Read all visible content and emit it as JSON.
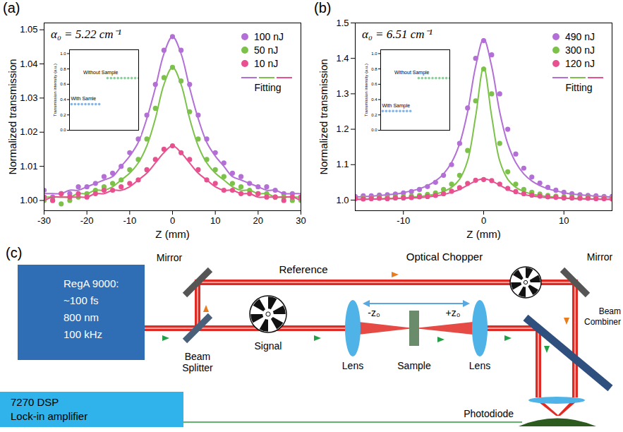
{
  "chart_data": [
    {
      "type": "scatter",
      "label": "(a)",
      "annotation": "α₀ = 5.22 cm⁻¹",
      "xlabel": "Z (mm)",
      "ylabel": "Normalized transmission",
      "xlim": [
        -30,
        30
      ],
      "xticks": [
        -30,
        -20,
        -10,
        0,
        10,
        20,
        30
      ],
      "ylim": [
        0.997,
        1.052
      ],
      "yticks": [
        {
          "value": 1,
          "label": "1.00"
        },
        1.01,
        1.02,
        1.03,
        1.04,
        1.05
      ],
      "legend": "top-right",
      "fit_label": "Fitting",
      "x": [
        -30,
        -28,
        -26,
        -24,
        -22,
        -20,
        -18,
        -16,
        -14,
        -12,
        -10,
        -8,
        -6,
        -4,
        -2,
        0,
        2,
        4,
        6,
        8,
        10,
        12,
        14,
        16,
        18,
        20,
        22,
        24,
        26,
        28,
        30
      ],
      "series": [
        {
          "name": "100 nJ",
          "color": "#b36fd6",
          "marker": "circle",
          "values": [
            1.003,
            1.001,
            1.002,
            1.002,
            1.004,
            1.004,
            1.005,
            1.007,
            1.008,
            1.01,
            1.014,
            1.018,
            1.025,
            1.034,
            1.044,
            1.048,
            1.044,
            1.034,
            1.025,
            1.018,
            1.014,
            1.011,
            1.008,
            1.007,
            1.005,
            1.004,
            1.004,
            1.003,
            1.002,
            1.002,
            1.001
          ],
          "fit": [
            1.002,
            1.002,
            1.002,
            1.003,
            1.003,
            1.004,
            1.005,
            1.006,
            1.007,
            1.01,
            1.013,
            1.017,
            1.024,
            1.033,
            1.043,
            1.048,
            1.043,
            1.033,
            1.024,
            1.017,
            1.013,
            1.01,
            1.007,
            1.006,
            1.005,
            1.004,
            1.003,
            1.003,
            1.002,
            1.002,
            1.002
          ]
        },
        {
          "name": "50 nJ",
          "color": "#7cc24a",
          "marker": "circle",
          "values": [
            1.0,
            1.0,
            0.999,
            1.0,
            1.001,
            1.002,
            1.003,
            1.004,
            1.005,
            1.006,
            1.009,
            1.012,
            1.018,
            1.027,
            1.036,
            1.039,
            1.035,
            1.026,
            1.018,
            1.012,
            1.009,
            1.007,
            1.005,
            1.004,
            1.003,
            1.002,
            1.002,
            1.001,
            1.001,
            1.0,
            1.0
          ],
          "fit": [
            1.001,
            1.001,
            1.001,
            1.001,
            1.002,
            1.002,
            1.003,
            1.003,
            1.004,
            1.006,
            1.008,
            1.011,
            1.016,
            1.024,
            1.034,
            1.039,
            1.034,
            1.024,
            1.016,
            1.011,
            1.008,
            1.006,
            1.004,
            1.003,
            1.003,
            1.002,
            1.002,
            1.001,
            1.001,
            1.001,
            1.001
          ]
        },
        {
          "name": "10 nJ",
          "color": "#e8508f",
          "marker": "circle",
          "values": [
            1.001,
            1.0,
            1.002,
            1.001,
            1.002,
            1.001,
            1.002,
            1.003,
            1.003,
            1.004,
            1.005,
            1.006,
            1.009,
            1.012,
            1.015,
            1.016,
            1.014,
            1.012,
            1.009,
            1.006,
            1.005,
            1.003,
            1.003,
            1.002,
            1.002,
            1.002,
            1.001,
            1.001,
            1.0,
            1.001,
            1.001
          ],
          "fit": [
            1.0,
            1.001,
            1.001,
            1.001,
            1.001,
            1.001,
            1.002,
            1.002,
            1.003,
            1.003,
            1.004,
            1.006,
            1.008,
            1.011,
            1.014,
            1.016,
            1.014,
            1.011,
            1.008,
            1.006,
            1.004,
            1.003,
            1.003,
            1.002,
            1.002,
            1.001,
            1.001,
            1.001,
            1.001,
            1.001,
            1.0
          ]
        }
      ],
      "inset": {
        "type": "scatter",
        "ylabel": "Transmission intensity (a.u.)",
        "xlim": [
          0,
          1
        ],
        "ylim": [
          0,
          1.05
        ],
        "yticks": [
          {
            "value": 0,
            "label": "0.0"
          },
          0.2,
          0.4,
          0.6,
          0.8,
          {
            "value": 1,
            "label": "1.0"
          }
        ],
        "tick_labels": "y",
        "series": [
          {
            "name": "Without Sample",
            "color": "#86d39a",
            "x": [
              0.55,
              0.6,
              0.65,
              0.7,
              0.75,
              0.8,
              0.85,
              0.9,
              0.95,
              1.0
            ],
            "values": [
              0.68,
              0.68,
              0.68,
              0.68,
              0.68,
              0.68,
              0.68,
              0.68,
              0.68,
              0.68
            ]
          },
          {
            "name": "With Samle",
            "color": "#86b4e6",
            "x": [
              0.03,
              0.08,
              0.13,
              0.18,
              0.23,
              0.28,
              0.33,
              0.38,
              0.43
            ],
            "values": [
              0.34,
              0.34,
              0.34,
              0.34,
              0.34,
              0.34,
              0.34,
              0.34,
              0.34
            ]
          }
        ]
      }
    },
    {
      "type": "scatter",
      "label": "(b)",
      "annotation": "α₀ = 6.51 cm⁻¹",
      "xlabel": "Z (mm)",
      "ylabel": "Normalized transmission",
      "xlim": [
        -16,
        16
      ],
      "xticks": [
        -10,
        0,
        10
      ],
      "ylim": [
        0.97,
        1.5
      ],
      "yticks": [
        {
          "value": 1,
          "label": "1.0"
        },
        1.1,
        1.2,
        1.3,
        1.4,
        1.5
      ],
      "legend": "top-right",
      "fit_label": "Fitting",
      "x": [
        -16,
        -15,
        -14,
        -13,
        -12,
        -11,
        -10,
        -9,
        -8,
        -7,
        -6,
        -5,
        -4,
        -3,
        -2,
        -1,
        0,
        1,
        2,
        3,
        4,
        5,
        6,
        7,
        8,
        9,
        10,
        11,
        12,
        13,
        14,
        15,
        16
      ],
      "series": [
        {
          "name": "490 nJ",
          "color": "#b36fd6",
          "marker": "circle",
          "values": [
            1.01,
            1.012,
            1.012,
            1.014,
            1.015,
            1.017,
            1.02,
            1.024,
            1.03,
            1.038,
            1.05,
            1.07,
            1.1,
            1.16,
            1.26,
            1.4,
            1.45,
            1.41,
            1.3,
            1.2,
            1.13,
            1.09,
            1.065,
            1.048,
            1.036,
            1.028,
            1.022,
            1.018,
            1.015,
            1.013,
            1.012,
            1.01,
            1.01
          ],
          "fit": [
            1.008,
            1.01,
            1.011,
            1.013,
            1.015,
            1.017,
            1.021,
            1.026,
            1.032,
            1.041,
            1.054,
            1.074,
            1.106,
            1.159,
            1.249,
            1.377,
            1.455,
            1.377,
            1.249,
            1.159,
            1.106,
            1.074,
            1.054,
            1.041,
            1.032,
            1.026,
            1.021,
            1.017,
            1.015,
            1.013,
            1.011,
            1.01,
            1.008
          ]
        },
        {
          "name": "300 nJ",
          "color": "#7cc24a",
          "marker": "circle",
          "values": [
            1.005,
            1.006,
            1.006,
            1.007,
            1.007,
            1.008,
            1.009,
            1.011,
            1.013,
            1.016,
            1.02,
            1.03,
            1.045,
            1.07,
            1.14,
            1.28,
            1.37,
            1.3,
            1.16,
            1.08,
            1.045,
            1.03,
            1.022,
            1.017,
            1.013,
            1.011,
            1.009,
            1.008,
            1.007,
            1.007,
            1.006,
            1.006,
            1.005
          ],
          "fit": [
            1.003,
            1.003,
            1.003,
            1.004,
            1.004,
            1.005,
            1.006,
            1.008,
            1.01,
            1.013,
            1.017,
            1.024,
            1.036,
            1.059,
            1.111,
            1.236,
            1.375,
            1.236,
            1.111,
            1.059,
            1.036,
            1.024,
            1.017,
            1.013,
            1.01,
            1.008,
            1.006,
            1.005,
            1.004,
            1.004,
            1.003,
            1.003,
            1.003
          ]
        },
        {
          "name": "120 nJ",
          "color": "#e8508f",
          "marker": "circle",
          "values": [
            1.004,
            1.003,
            1.004,
            1.005,
            1.004,
            1.006,
            1.006,
            1.007,
            1.009,
            1.01,
            1.013,
            1.018,
            1.025,
            1.035,
            1.047,
            1.056,
            1.058,
            1.055,
            1.045,
            1.033,
            1.024,
            1.018,
            1.014,
            1.011,
            1.009,
            1.008,
            1.006,
            1.006,
            1.005,
            1.005,
            1.004,
            1.004,
            1.003
          ],
          "fit": [
            1.002,
            1.002,
            1.003,
            1.003,
            1.004,
            1.004,
            1.005,
            1.006,
            1.007,
            1.009,
            1.012,
            1.016,
            1.022,
            1.03,
            1.042,
            1.054,
            1.06,
            1.054,
            1.042,
            1.03,
            1.022,
            1.016,
            1.012,
            1.009,
            1.007,
            1.006,
            1.005,
            1.004,
            1.004,
            1.003,
            1.003,
            1.002,
            1.002
          ]
        }
      ],
      "inset": {
        "type": "scatter",
        "ylabel": "Transmission intensity (a.u.)",
        "xlim": [
          0,
          1
        ],
        "ylim": [
          0,
          1.05
        ],
        "yticks": [
          {
            "value": 0,
            "label": "0.0"
          },
          0.2,
          0.4,
          0.6,
          0.8,
          {
            "value": 1,
            "label": "1.0"
          }
        ],
        "tick_labels": "y",
        "series": [
          {
            "name": "Without Sample",
            "color": "#86d39a",
            "x": [
              0.55,
              0.6,
              0.65,
              0.7,
              0.75,
              0.8,
              0.85,
              0.9,
              0.95,
              1.0
            ],
            "values": [
              0.68,
              0.68,
              0.68,
              0.68,
              0.68,
              0.68,
              0.68,
              0.68,
              0.68,
              0.68
            ]
          },
          {
            "name": "With Sample",
            "color": "#86b4e6",
            "x": [
              0.03,
              0.08,
              0.13,
              0.18,
              0.23,
              0.28,
              0.33,
              0.38,
              0.43
            ],
            "values": [
              0.25,
              0.25,
              0.25,
              0.25,
              0.25,
              0.25,
              0.25,
              0.25,
              0.25
            ]
          }
        ]
      }
    }
  ],
  "diagram": {
    "label": "(c)",
    "laser": [
      "RegA 9000:",
      "~100 fs",
      "800 nm",
      "100 kHz"
    ],
    "lockin": [
      "7270 DSP",
      "Lock-in amplifier"
    ],
    "components": {
      "mirror_left": "Mirror",
      "reference": "Reference",
      "chopper_top": "Optical Chopper",
      "mirror_right": "Mirror",
      "combiner": "Beam Combiner",
      "splitter": "Beam Splitter",
      "signal": "Signal",
      "lens_left": "Lens",
      "minus_z": "-z₀",
      "plus_z": "+z₀",
      "sample": "Sample",
      "lens_right": "Lens",
      "photodiode": "Photodiode"
    }
  }
}
